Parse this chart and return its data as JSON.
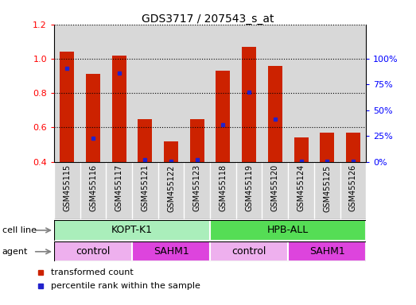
{
  "title": "GDS3717 / 207543_s_at",
  "samples": [
    "GSM455115",
    "GSM455116",
    "GSM455117",
    "GSM455121",
    "GSM455122",
    "GSM455123",
    "GSM455118",
    "GSM455119",
    "GSM455120",
    "GSM455124",
    "GSM455125",
    "GSM455126"
  ],
  "transformed_count": [
    1.04,
    0.91,
    1.02,
    0.65,
    0.52,
    0.65,
    0.93,
    1.07,
    0.96,
    0.54,
    0.57,
    0.57
  ],
  "percentile_rank_y": [
    0.945,
    0.535,
    0.915,
    0.41,
    0.403,
    0.41,
    0.615,
    0.805,
    0.65,
    0.403,
    0.403,
    0.403
  ],
  "ymin": 0.4,
  "ymax": 1.2,
  "yticks": [
    0.4,
    0.6,
    0.8,
    1.0,
    1.2
  ],
  "right_ytick_pcts": [
    0,
    25,
    50,
    75,
    100
  ],
  "bar_color": "#cc2200",
  "blue_color": "#2222cc",
  "cell_line_light_green": "#aaeebb",
  "cell_line_bright_green": "#55dd55",
  "agent_light_pink": "#eeb0ee",
  "agent_bright_pink": "#dd44dd",
  "bar_width": 0.55,
  "base_value": 0.4,
  "groups_cell_lines": [
    {
      "label": "KOPT-K1",
      "start": 0,
      "end": 6,
      "color": "#aaeebb"
    },
    {
      "label": "HPB-ALL",
      "start": 6,
      "end": 12,
      "color": "#55dd55"
    }
  ],
  "groups_agents": [
    {
      "label": "control",
      "start": 0,
      "end": 3,
      "color": "#eeb0ee"
    },
    {
      "label": "SAHM1",
      "start": 3,
      "end": 6,
      "color": "#dd44dd"
    },
    {
      "label": "control",
      "start": 6,
      "end": 9,
      "color": "#eeb0ee"
    },
    {
      "label": "SAHM1",
      "start": 9,
      "end": 12,
      "color": "#dd44dd"
    }
  ],
  "fig_width": 5.23,
  "fig_height": 3.84
}
